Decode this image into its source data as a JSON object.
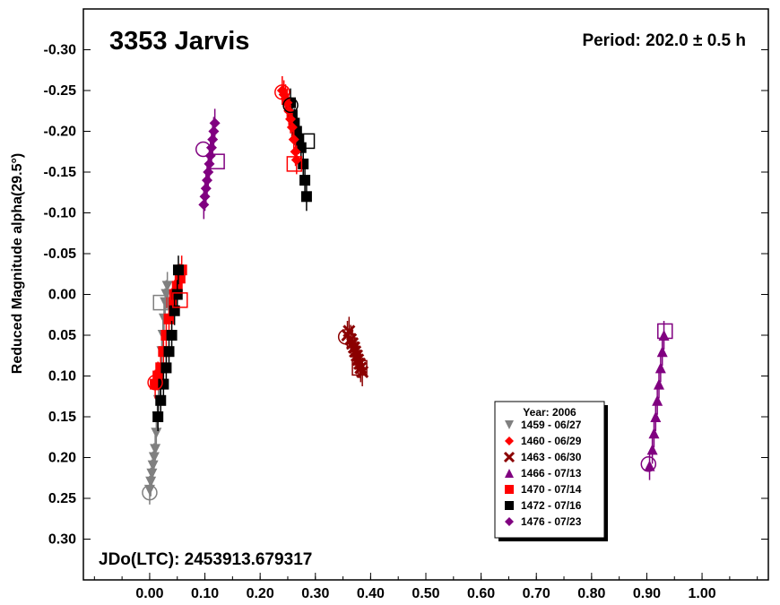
{
  "chart_data": {
    "type": "scatter",
    "title": "3353 Jarvis",
    "period_label": "Period: 202.0 ± 0.5 h",
    "jd_label": "JDo(LTC): 2453913.679317",
    "xlabel": "",
    "ylabel": "Reduced Magnitude alpha(29.5°)",
    "xlim": [
      -0.12,
      1.12
    ],
    "ylim": [
      0.35,
      -0.35
    ],
    "y_inverted": true,
    "grid": false,
    "x_ticks": [
      "0.00",
      "0.10",
      "0.20",
      "0.30",
      "0.40",
      "0.50",
      "0.60",
      "0.70",
      "0.80",
      "0.90",
      "1.00"
    ],
    "x_tick_values": [
      0,
      0.1,
      0.2,
      0.3,
      0.4,
      0.5,
      0.6,
      0.7,
      0.8,
      0.9,
      1.0
    ],
    "y_ticks": [
      "-0.30",
      "-0.25",
      "-0.20",
      "-0.15",
      "-0.10",
      "-0.05",
      "0.00",
      "0.05",
      "0.10",
      "0.15",
      "0.20",
      "0.25",
      "0.30"
    ],
    "y_tick_values": [
      -0.3,
      -0.25,
      -0.2,
      -0.15,
      -0.1,
      -0.05,
      0.0,
      0.05,
      0.1,
      0.15,
      0.2,
      0.25,
      0.3
    ],
    "legend": {
      "title": "Year: 2006",
      "placement": "bottom-right"
    },
    "series": [
      {
        "name": "1459 - 06/27",
        "marker": "triangle-down",
        "color": "#808080",
        "points": [
          [
            0.0,
            0.24
          ],
          [
            0.002,
            0.23
          ],
          [
            0.004,
            0.22
          ],
          [
            0.006,
            0.21
          ],
          [
            0.008,
            0.2
          ],
          [
            0.01,
            0.19
          ],
          [
            0.012,
            0.17
          ],
          [
            0.014,
            0.15
          ],
          [
            0.016,
            0.13
          ],
          [
            0.018,
            0.11
          ],
          [
            0.02,
            0.09
          ],
          [
            0.022,
            0.07
          ],
          [
            0.024,
            0.05
          ],
          [
            0.026,
            0.03
          ],
          [
            0.028,
            0.01
          ],
          [
            0.03,
            0.0
          ],
          [
            0.032,
            -0.01
          ]
        ],
        "start": [
          0.0,
          0.243
        ],
        "end": [
          0.02,
          0.01
        ]
      },
      {
        "name": "1460 - 06/29",
        "marker": "diamond",
        "color": "#ff0000",
        "points": [
          [
            0.24,
            -0.25
          ],
          [
            0.243,
            -0.245
          ],
          [
            0.246,
            -0.24
          ],
          [
            0.249,
            -0.235
          ],
          [
            0.252,
            -0.225
          ],
          [
            0.255,
            -0.215
          ],
          [
            0.258,
            -0.205
          ],
          [
            0.261,
            -0.19
          ],
          [
            0.264,
            -0.175
          ],
          [
            0.266,
            -0.165
          ]
        ],
        "start": [
          0.24,
          -0.248
        ],
        "end": [
          0.262,
          -0.16
        ]
      },
      {
        "name": "1463 - 06/30",
        "marker": "x",
        "color": "#8b0000",
        "points": [
          [
            0.358,
            0.05
          ],
          [
            0.361,
            0.045
          ],
          [
            0.364,
            0.055
          ],
          [
            0.367,
            0.06
          ],
          [
            0.37,
            0.065
          ],
          [
            0.372,
            0.07
          ],
          [
            0.375,
            0.075
          ],
          [
            0.377,
            0.08
          ],
          [
            0.38,
            0.085
          ],
          [
            0.382,
            0.09
          ],
          [
            0.385,
            0.095
          ]
        ],
        "start": [
          0.355,
          0.052
        ],
        "end": [
          0.38,
          0.09
        ]
      },
      {
        "name": "1466 - 07/13",
        "marker": "triangle-up",
        "color": "#800080",
        "points": [
          [
            0.905,
            0.21
          ],
          [
            0.91,
            0.19
          ],
          [
            0.913,
            0.17
          ],
          [
            0.916,
            0.15
          ],
          [
            0.919,
            0.13
          ],
          [
            0.922,
            0.11
          ],
          [
            0.925,
            0.09
          ],
          [
            0.928,
            0.07
          ],
          [
            0.931,
            0.05
          ]
        ],
        "start": [
          0.903,
          0.208
        ],
        "end": [
          0.933,
          0.045
        ]
      },
      {
        "name": "1470 - 07/14",
        "marker": "square",
        "color": "#ff0000",
        "points": [
          [
            0.01,
            0.11
          ],
          [
            0.015,
            0.1
          ],
          [
            0.02,
            0.09
          ],
          [
            0.025,
            0.07
          ],
          [
            0.03,
            0.05
          ],
          [
            0.035,
            0.03
          ],
          [
            0.04,
            0.01
          ],
          [
            0.045,
            0.0
          ],
          [
            0.05,
            -0.01
          ],
          [
            0.055,
            -0.02
          ],
          [
            0.058,
            -0.03
          ]
        ],
        "start": [
          0.01,
          0.108
        ],
        "end": [
          0.055,
          0.007
        ]
      },
      {
        "name": "1472 - 07/16",
        "marker": "square",
        "color": "#000000",
        "points": [
          [
            0.015,
            0.15
          ],
          [
            0.02,
            0.13
          ],
          [
            0.025,
            0.11
          ],
          [
            0.03,
            0.09
          ],
          [
            0.035,
            0.07
          ],
          [
            0.04,
            0.05
          ],
          [
            0.045,
            0.02
          ],
          [
            0.05,
            0.0
          ],
          [
            0.052,
            -0.03
          ],
          [
            0.255,
            -0.235
          ],
          [
            0.258,
            -0.22
          ],
          [
            0.262,
            -0.21
          ],
          [
            0.266,
            -0.2
          ],
          [
            0.27,
            -0.19
          ],
          [
            0.274,
            -0.18
          ],
          [
            0.278,
            -0.16
          ],
          [
            0.281,
            -0.14
          ],
          [
            0.284,
            -0.12
          ]
        ],
        "start": [
          0.255,
          -0.232
        ],
        "end": [
          0.285,
          -0.188
        ]
      },
      {
        "name": "1476 - 07/23",
        "marker": "diamond",
        "color": "#800080",
        "points": [
          [
            0.098,
            -0.11
          ],
          [
            0.1,
            -0.12
          ],
          [
            0.102,
            -0.13
          ],
          [
            0.104,
            -0.14
          ],
          [
            0.106,
            -0.15
          ],
          [
            0.108,
            -0.16
          ],
          [
            0.11,
            -0.17
          ],
          [
            0.112,
            -0.18
          ],
          [
            0.114,
            -0.19
          ],
          [
            0.116,
            -0.2
          ],
          [
            0.118,
            -0.21
          ]
        ],
        "start": [
          0.097,
          -0.178
        ],
        "end": [
          0.122,
          -0.163
        ]
      }
    ]
  }
}
